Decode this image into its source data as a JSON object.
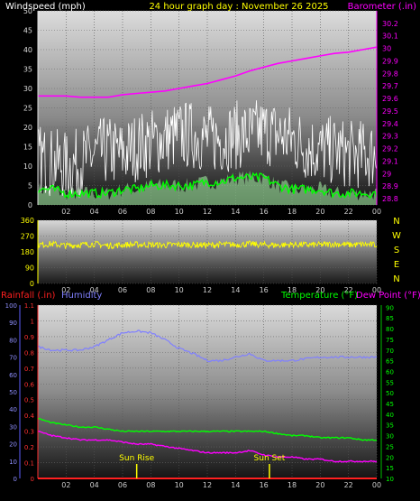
{
  "top": {
    "left_title": "Windspeed (mph)",
    "center_title": "24 hour graph day : November 26 2025",
    "right_title": "Barometer (.in)",
    "left_color": "#ffffff",
    "center_color": "#ffff00",
    "right_color": "#ff00ff"
  },
  "bottom": {
    "rainfall_label": "Rainfall (.in)",
    "humidity_label": "Humidity",
    "temperature_label": "Temperature (°F)",
    "dewpoint_label": "Dew Point (°F)",
    "rainfall_color": "#ff2020",
    "humidity_color": "#8080ff",
    "temperature_color": "#00ff00",
    "dewpoint_color": "#ff00ff"
  },
  "chart_data": [
    {
      "type": "line",
      "x_axis_hours": [
        "02",
        "04",
        "06",
        "08",
        "10",
        "12",
        "14",
        "16",
        "18",
        "20",
        "22",
        "00"
      ],
      "left_axis_ticks": [
        "0",
        "5",
        "10",
        "15",
        "20",
        "25",
        "30",
        "35",
        "40",
        "45",
        "50"
      ],
      "right_axis_ticks": [
        "28.8",
        "28.9",
        "29",
        "29.1",
        "29.2",
        "29.3",
        "29.4",
        "29.5",
        "29.6",
        "29.7",
        "29.8",
        "29.9",
        "30",
        "30.1",
        "30.2"
      ],
      "ylim_left": [
        0,
        50
      ],
      "ylim_right": [
        28.75,
        30.3
      ],
      "series": [
        {
          "name": "Windspeed (mph)",
          "color": "#ffffff",
          "x": [
            0,
            1,
            2,
            3,
            4,
            5,
            6,
            7,
            8,
            9,
            10,
            11,
            12,
            13,
            14,
            15,
            16,
            17,
            18,
            19,
            20,
            21,
            22,
            23,
            24
          ],
          "values": [
            12,
            11,
            10,
            11,
            13,
            14,
            13,
            15,
            16,
            17,
            18,
            18,
            17,
            17,
            18,
            18,
            19,
            18,
            17,
            15,
            14,
            14,
            13,
            13,
            13
          ]
        },
        {
          "name": "Average windspeed",
          "color": "#00ff00",
          "x": [
            0,
            1,
            2,
            3,
            4,
            5,
            6,
            7,
            8,
            9,
            10,
            11,
            12,
            13,
            14,
            15,
            16,
            17,
            18,
            19,
            20,
            21,
            22,
            23,
            24
          ],
          "values": [
            4,
            4,
            3,
            3,
            3,
            3,
            4,
            4,
            5,
            5,
            5,
            5,
            6,
            6,
            7,
            7,
            7,
            5,
            4,
            4,
            4,
            3,
            3,
            3,
            3
          ]
        },
        {
          "name": "Barometer (.in)",
          "color": "#ff00ff",
          "x": [
            0,
            1,
            2,
            3,
            4,
            5,
            6,
            7,
            8,
            9,
            10,
            11,
            12,
            13,
            14,
            15,
            16,
            17,
            18,
            19,
            20,
            21,
            22,
            23,
            24
          ],
          "values": [
            29.62,
            29.62,
            29.62,
            29.61,
            29.61,
            29.61,
            29.63,
            29.64,
            29.65,
            29.66,
            29.68,
            29.7,
            29.72,
            29.75,
            29.78,
            29.82,
            29.85,
            29.88,
            29.9,
            29.92,
            29.94,
            29.96,
            29.97,
            29.99,
            30.01
          ]
        }
      ]
    },
    {
      "type": "line",
      "x_axis_hours": [
        "02",
        "04",
        "06",
        "08",
        "10",
        "12",
        "14",
        "16",
        "18",
        "20",
        "22",
        "00"
      ],
      "direction_ticks": [
        "0",
        "90",
        "180",
        "270",
        "360"
      ],
      "compass_labels": [
        "N",
        "W",
        "S",
        "E",
        "N"
      ],
      "ylim": [
        0,
        360
      ],
      "series": [
        {
          "name": "Wind direction",
          "color": "#ffff00",
          "x": [
            0,
            1,
            2,
            3,
            4,
            5,
            6,
            7,
            8,
            9,
            10,
            11,
            12,
            13,
            14,
            15,
            16,
            17,
            18,
            19,
            20,
            21,
            22,
            23,
            24
          ],
          "values": [
            220,
            225,
            215,
            220,
            225,
            215,
            220,
            222,
            220,
            218,
            222,
            220,
            218,
            222,
            220,
            225,
            220,
            218,
            222,
            220,
            220,
            225,
            220,
            222,
            220
          ]
        }
      ]
    },
    {
      "type": "line",
      "x_axis_hours": [
        "02",
        "04",
        "06",
        "08",
        "10",
        "12",
        "14",
        "16",
        "18",
        "20",
        "22",
        "00"
      ],
      "humidity_ticks": [
        "0",
        "10",
        "20",
        "30",
        "40",
        "50",
        "60",
        "70",
        "80",
        "90",
        "100"
      ],
      "rainfall_ticks": [
        "0",
        "0.1",
        "0.2",
        "0.3",
        "0.4",
        "0.5",
        "0.6",
        "0.7",
        "0.8",
        "0.9",
        "1",
        "1.1"
      ],
      "temperature_ticks": [
        "10",
        "15",
        "20",
        "25",
        "30",
        "35",
        "40",
        "45",
        "50",
        "55",
        "60",
        "65",
        "70",
        "75",
        "80",
        "85",
        "90"
      ],
      "ylim_humidity": [
        0,
        100
      ],
      "ylim_rainfall": [
        0,
        1.1
      ],
      "ylim_temperature": [
        10,
        91
      ],
      "annotations": [
        {
          "text": "Sun Rise",
          "hour": 7.0
        },
        {
          "text": "Sun Set",
          "hour": 16.4
        }
      ],
      "series": [
        {
          "name": "Humidity",
          "color": "#8080ff",
          "x": [
            0,
            1,
            2,
            3,
            4,
            5,
            6,
            7,
            8,
            9,
            10,
            11,
            12,
            13,
            14,
            15,
            16,
            17,
            18,
            19,
            20,
            21,
            22,
            23,
            24
          ],
          "values": [
            76,
            74,
            74,
            74,
            76,
            80,
            84,
            85,
            84,
            80,
            75,
            72,
            68,
            68,
            70,
            72,
            68,
            68,
            68,
            69,
            70,
            70,
            70,
            70,
            70
          ]
        },
        {
          "name": "Temperature (°F)",
          "color": "#00ff00",
          "x": [
            0,
            1,
            2,
            3,
            4,
            5,
            6,
            7,
            8,
            9,
            10,
            11,
            12,
            13,
            14,
            15,
            16,
            17,
            18,
            19,
            20,
            21,
            22,
            23,
            24
          ],
          "values": [
            38,
            36,
            35,
            34,
            34,
            33,
            32,
            32,
            32,
            32,
            32,
            32,
            32,
            32,
            32,
            32,
            32,
            31,
            30,
            30,
            29,
            29,
            29,
            28,
            28
          ]
        },
        {
          "name": "Dew Point (°F)",
          "color": "#ff00ff",
          "x": [
            0,
            1,
            2,
            3,
            4,
            5,
            6,
            7,
            8,
            9,
            10,
            11,
            12,
            13,
            14,
            15,
            16,
            17,
            18,
            19,
            20,
            21,
            22,
            23,
            24
          ],
          "values": [
            32,
            30,
            29,
            28,
            28,
            28,
            27,
            26,
            26,
            25,
            24,
            23,
            22,
            22,
            22,
            23,
            21,
            20,
            20,
            19,
            19,
            18,
            18,
            18,
            18
          ]
        },
        {
          "name": "Rainfall (.in)",
          "color": "#ff2020",
          "x": [
            0,
            24
          ],
          "values": [
            0,
            0
          ]
        }
      ]
    }
  ]
}
